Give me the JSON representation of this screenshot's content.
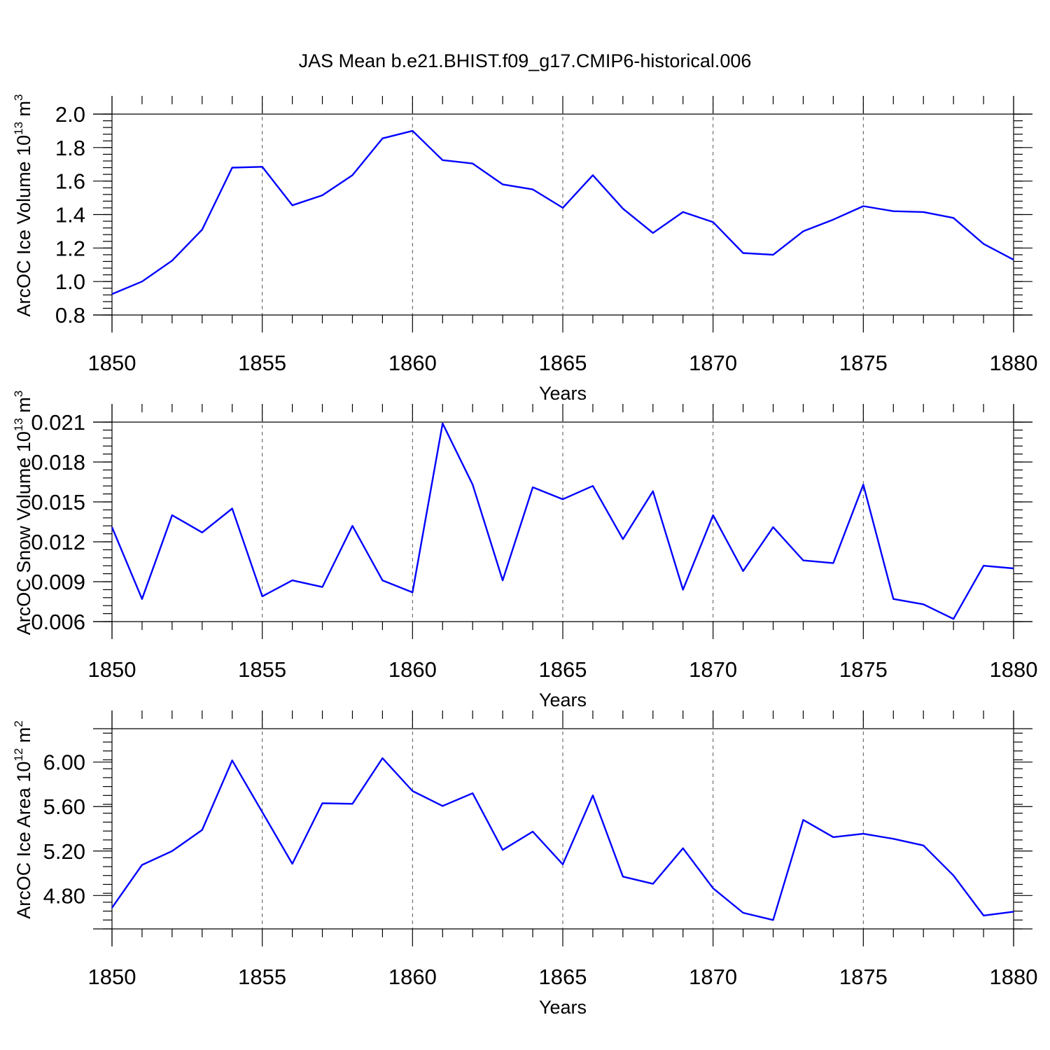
{
  "title": "JAS Mean b.e21.BHIST.f09_g17.CMIP6-historical.006",
  "colors": {
    "line": "#0000ff",
    "axis": "#000000",
    "grid": "#555555",
    "background": "#ffffff"
  },
  "chart_data": [
    {
      "type": "line",
      "title": "JAS Mean b.e21.BHIST.f09_g17.CMIP6-historical.006",
      "xlabel": "Years",
      "ylabel_base": "ArcOC Ice Volume 10",
      "ylabel_sup": "13",
      "ylabel_unit": " m",
      "ylabel_unit_sup": "3",
      "xlim": [
        1850,
        1880
      ],
      "ylim": [
        0.8,
        2.0
      ],
      "yticks": [
        "0.8",
        "1.0",
        "1.2",
        "1.4",
        "1.6",
        "1.8",
        "2.0"
      ],
      "yminor_step": 0.04,
      "xticks": [
        "1850",
        "1855",
        "1860",
        "1865",
        "1870",
        "1875",
        "1880"
      ],
      "grid": "dashed vertical at labeled years",
      "x": [
        1850,
        1851,
        1852,
        1853,
        1854,
        1855,
        1856,
        1857,
        1858,
        1859,
        1860,
        1861,
        1862,
        1863,
        1864,
        1865,
        1866,
        1867,
        1868,
        1869,
        1870,
        1871,
        1872,
        1873,
        1874,
        1875,
        1876,
        1877,
        1878,
        1879,
        1880
      ],
      "values": [
        0.925,
        1.0,
        1.125,
        1.31,
        1.68,
        1.685,
        1.455,
        1.515,
        1.635,
        1.855,
        1.9,
        1.725,
        1.705,
        1.58,
        1.55,
        1.44,
        1.635,
        1.435,
        1.29,
        1.415,
        1.355,
        1.17,
        1.16,
        1.3,
        1.37,
        1.45,
        1.42,
        1.415,
        1.38,
        1.225,
        1.13
      ]
    },
    {
      "type": "line",
      "xlabel": "Years",
      "ylabel_base": "ArcOC Snow Volume 10",
      "ylabel_sup": "13",
      "ylabel_unit": " m",
      "ylabel_unit_sup": "3",
      "xlim": [
        1850,
        1880
      ],
      "ylim": [
        0.006,
        0.021
      ],
      "yticks": [
        "0.006",
        "0.009",
        "0.012",
        "0.015",
        "0.018",
        "0.021"
      ],
      "yminor_step": 0.0006,
      "xticks": [
        "1850",
        "1855",
        "1860",
        "1865",
        "1870",
        "1875",
        "1880"
      ],
      "grid": "dashed vertical at labeled years",
      "x": [
        1850,
        1851,
        1852,
        1853,
        1854,
        1855,
        1856,
        1857,
        1858,
        1859,
        1860,
        1861,
        1862,
        1863,
        1864,
        1865,
        1866,
        1867,
        1868,
        1869,
        1870,
        1871,
        1872,
        1873,
        1874,
        1875,
        1876,
        1877,
        1878,
        1879,
        1880
      ],
      "values": [
        0.0131,
        0.0077,
        0.014,
        0.0127,
        0.0145,
        0.0079,
        0.0091,
        0.0086,
        0.0132,
        0.0091,
        0.0082,
        0.0209,
        0.0163,
        0.0091,
        0.0161,
        0.0152,
        0.0162,
        0.0122,
        0.0158,
        0.0084,
        0.014,
        0.0098,
        0.0131,
        0.0106,
        0.0104,
        0.0163,
        0.0077,
        0.0073,
        0.0062,
        0.0102,
        0.01
      ]
    },
    {
      "type": "line",
      "xlabel": "Years",
      "ylabel_base": "ArcOC Ice Area 10",
      "ylabel_sup": "12",
      "ylabel_unit": " m",
      "ylabel_unit_sup": "2",
      "xlim": [
        1850,
        1880
      ],
      "ylim": [
        4.5,
        6.3
      ],
      "yticks": [
        "4.80",
        "5.20",
        "5.60",
        "6.00"
      ],
      "ytick_values": [
        4.8,
        5.2,
        5.6,
        6.0
      ],
      "yminor_step": 0.08,
      "xticks": [
        "1850",
        "1855",
        "1860",
        "1865",
        "1870",
        "1875",
        "1880"
      ],
      "grid": "dashed vertical at labeled years",
      "x": [
        1850,
        1851,
        1852,
        1853,
        1854,
        1855,
        1856,
        1857,
        1858,
        1859,
        1860,
        1861,
        1862,
        1863,
        1864,
        1865,
        1866,
        1867,
        1868,
        1869,
        1870,
        1871,
        1872,
        1873,
        1874,
        1875,
        1876,
        1877,
        1878,
        1879,
        1880
      ],
      "values": [
        4.69,
        5.075,
        5.2,
        5.39,
        6.015,
        5.55,
        5.085,
        5.63,
        5.625,
        6.035,
        5.74,
        5.605,
        5.72,
        5.21,
        5.375,
        5.08,
        5.7,
        4.97,
        4.905,
        5.225,
        4.865,
        4.645,
        4.58,
        5.48,
        5.325,
        5.355,
        5.31,
        5.25,
        4.98,
        4.62,
        4.655
      ]
    }
  ]
}
